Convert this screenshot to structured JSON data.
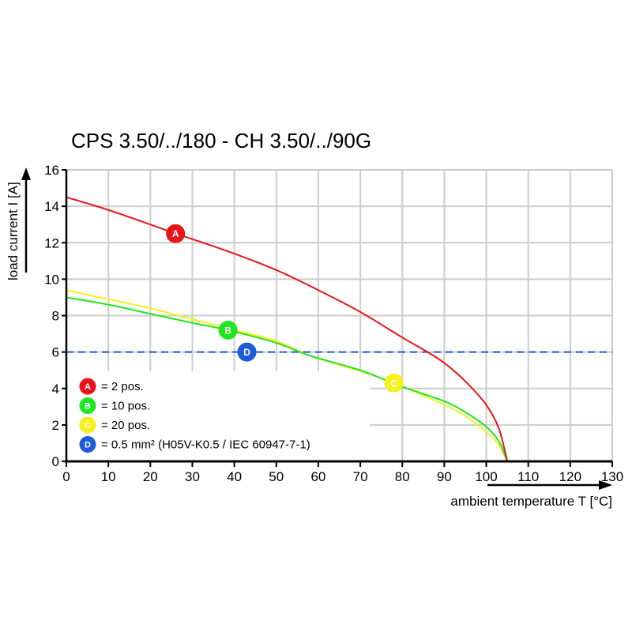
{
  "chart_data": {
    "type": "line",
    "title": "CPS 3.50/../180 - CH 3.50/../90G",
    "xlabel": "ambient temperature T [°C]",
    "ylabel": "load current I [A]",
    "xlim": [
      0,
      130
    ],
    "ylim": [
      0,
      16
    ],
    "xticks": [
      0,
      10,
      20,
      30,
      40,
      50,
      60,
      70,
      80,
      90,
      100,
      110,
      120,
      130
    ],
    "yticks": [
      0,
      2,
      4,
      6,
      8,
      10,
      12,
      14,
      16
    ],
    "grid": true,
    "legend_position": "bottom-left",
    "series": [
      {
        "id": "A",
        "name": "= 2 pos.",
        "color": "#e8141b",
        "x": [
          0,
          10,
          20,
          26,
          30,
          40,
          50,
          60,
          70,
          80,
          86,
          90,
          95,
          100,
          103,
          105
        ],
        "y": [
          14.5,
          13.8,
          13.0,
          12.5,
          12.2,
          11.4,
          10.5,
          9.4,
          8.2,
          6.8,
          6.0,
          5.4,
          4.4,
          3.1,
          1.8,
          0
        ],
        "marker_at": [
          26,
          12.5
        ]
      },
      {
        "id": "B",
        "name": "= 10 pos.",
        "color": "#1ee61e",
        "x": [
          0,
          10,
          20,
          30,
          38.5,
          50,
          58,
          70,
          80,
          90,
          95,
          100,
          103,
          105
        ],
        "y": [
          9.0,
          8.6,
          8.1,
          7.6,
          7.2,
          6.5,
          5.8,
          5.0,
          4.1,
          3.3,
          2.7,
          1.9,
          1.1,
          0
        ],
        "marker_at": [
          38.5,
          7.2
        ]
      },
      {
        "id": "C",
        "name": "= 20 pos.",
        "color": "#f5f01e",
        "x": [
          0,
          10,
          20,
          30,
          38.5,
          50,
          58,
          70,
          78,
          90,
          95,
          100,
          103,
          105
        ],
        "y": [
          9.4,
          8.9,
          8.4,
          7.8,
          7.3,
          6.6,
          5.8,
          4.95,
          4.3,
          3.1,
          2.5,
          1.6,
          0.9,
          0
        ],
        "marker_at": [
          78,
          4.3
        ]
      },
      {
        "id": "D",
        "name": "= 0.5 mm² (H05V-K0.5 / IEC 60947-7-1)",
        "color": "#1e5adc",
        "x": [
          0,
          130
        ],
        "y": [
          6,
          6
        ],
        "dashed": true,
        "marker_at": [
          43,
          6
        ]
      }
    ]
  }
}
